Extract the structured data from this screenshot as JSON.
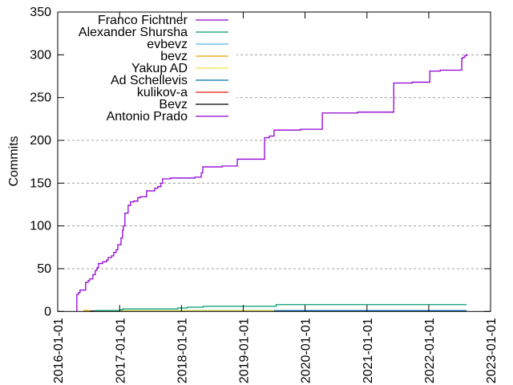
{
  "chart_data": {
    "type": "line",
    "title": "",
    "xlabel": "",
    "ylabel": "Commits",
    "xlim": [
      "2016-01-01",
      "2023-01-01"
    ],
    "ylim": [
      0,
      350
    ],
    "x_ticks": [
      "2016-01-01",
      "2017-01-01",
      "2018-01-01",
      "2019-01-01",
      "2020-01-01",
      "2021-01-01",
      "2022-01-01",
      "2023-01-01"
    ],
    "y_ticks": [
      0,
      50,
      100,
      150,
      200,
      250,
      300,
      350
    ],
    "grid": "horizontal dotted",
    "legend_position": "top-left",
    "step": true,
    "series": [
      {
        "name": "Franco Fichtner",
        "color": "#9400d3",
        "points": [
          [
            "2016-04-23",
            0
          ],
          [
            "2016-04-23",
            20
          ],
          [
            "2016-05-03",
            22
          ],
          [
            "2016-05-12",
            25
          ],
          [
            "2016-05-22",
            25
          ],
          [
            "2016-06-14",
            34
          ],
          [
            "2016-06-29",
            36
          ],
          [
            "2016-07-08",
            38
          ],
          [
            "2016-07-27",
            43
          ],
          [
            "2016-08-10",
            48
          ],
          [
            "2016-08-20",
            51
          ],
          [
            "2016-08-29",
            56
          ],
          [
            "2016-09-22",
            58
          ],
          [
            "2016-10-16",
            60
          ],
          [
            "2016-10-25",
            63
          ],
          [
            "2016-11-13",
            65
          ],
          [
            "2016-11-27",
            69
          ],
          [
            "2016-12-11",
            72
          ],
          [
            "2016-12-21",
            78
          ],
          [
            "2017-01-09",
            86
          ],
          [
            "2017-01-18",
            95
          ],
          [
            "2017-01-23",
            100
          ],
          [
            "2017-02-01",
            115
          ],
          [
            "2017-02-20",
            124
          ],
          [
            "2017-03-06",
            128
          ],
          [
            "2017-03-25",
            129
          ],
          [
            "2017-04-18",
            133
          ],
          [
            "2017-05-03",
            134
          ],
          [
            "2017-06-09",
            141
          ],
          [
            "2017-07-27",
            144
          ],
          [
            "2017-08-14",
            146
          ],
          [
            "2017-09-02",
            150
          ],
          [
            "2017-09-12",
            155
          ],
          [
            "2017-10-29",
            156
          ],
          [
            "2018-03-21",
            157
          ],
          [
            "2018-04-28",
            162
          ],
          [
            "2018-05-07",
            169
          ],
          [
            "2018-05-17",
            169
          ],
          [
            "2018-08-29",
            170
          ],
          [
            "2018-11-27",
            178
          ],
          [
            "2019-02-15",
            178
          ],
          [
            "2019-05-07",
            203
          ],
          [
            "2019-06-04",
            205
          ],
          [
            "2019-07-02",
            212
          ],
          [
            "2019-12-06",
            213
          ],
          [
            "2020-04-12",
            232
          ],
          [
            "2020-11-06",
            233
          ],
          [
            "2021-06-08",
            267
          ],
          [
            "2021-09-25",
            268
          ],
          [
            "2022-01-07",
            281
          ],
          [
            "2022-03-10",
            282
          ],
          [
            "2022-07-15",
            296
          ],
          [
            "2022-07-22",
            297
          ],
          [
            "2022-08-02",
            299
          ],
          [
            "2022-08-12",
            301
          ]
        ]
      },
      {
        "name": "Alexander Shursha",
        "color": "#009e73",
        "points": [
          [
            "2016-08-10",
            1
          ],
          [
            "2017-01-01",
            2
          ],
          [
            "2017-01-18",
            3
          ],
          [
            "2017-12-10",
            4
          ],
          [
            "2018-02-05",
            5
          ],
          [
            "2018-05-10",
            6
          ],
          [
            "2019-07-15",
            8
          ],
          [
            "2022-08-12",
            8
          ]
        ]
      },
      {
        "name": "evbevz",
        "color": "#56b4e9",
        "points": [
          [
            "2016-08-10",
            1
          ],
          [
            "2016-08-15",
            1
          ]
        ]
      },
      {
        "name": "bevz",
        "color": "#e69f00",
        "points": [
          [
            "2016-06-01",
            1
          ],
          [
            "2016-07-10",
            1
          ]
        ]
      },
      {
        "name": "Yakup AD",
        "color": "#f0e442",
        "points": [
          [
            "2016-08-20",
            1
          ],
          [
            "2019-07-02",
            1
          ]
        ]
      },
      {
        "name": "Ad Schellevis",
        "color": "#0072b2",
        "points": [
          [
            "2016-08-10",
            1
          ],
          [
            "2022-08-12",
            1
          ]
        ]
      },
      {
        "name": "kulikov-a",
        "color": "#e51e10",
        "points": [
          [
            "2016-08-10",
            1
          ],
          [
            "2016-08-15",
            1
          ]
        ]
      },
      {
        "name": "Bevz",
        "color": "#000000",
        "points": [
          [
            "2016-07-10",
            0.5
          ],
          [
            "2016-08-10",
            0.5
          ]
        ]
      },
      {
        "name": "Antonio Prado",
        "color": "#9400d3",
        "points": [
          [
            "2016-08-10",
            0.5
          ],
          [
            "2022-08-12",
            0.5
          ]
        ]
      }
    ]
  }
}
